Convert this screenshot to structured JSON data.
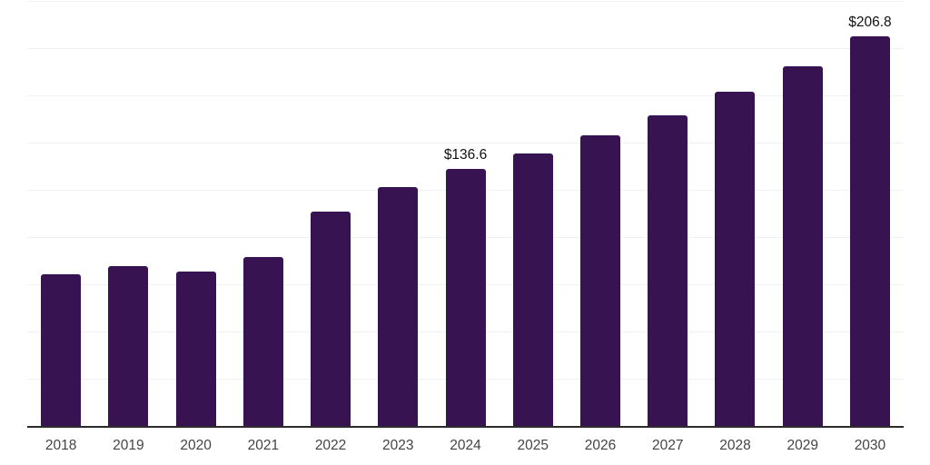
{
  "chart_data": {
    "type": "bar",
    "title": "",
    "xlabel": "",
    "ylabel": "",
    "categories": [
      "2018",
      "2019",
      "2020",
      "2021",
      "2022",
      "2023",
      "2024",
      "2025",
      "2026",
      "2027",
      "2028",
      "2029",
      "2030"
    ],
    "values": [
      80.8,
      84.9,
      82.4,
      90.1,
      114.0,
      126.8,
      136.6,
      144.9,
      154.5,
      164.9,
      177.2,
      191.0,
      206.8
    ],
    "data_labels": [
      {
        "category": "2024",
        "text": "$136.6"
      },
      {
        "category": "2030",
        "text": "$206.8"
      }
    ],
    "ylim": [
      0,
      225
    ],
    "gridline_step": 25,
    "grid": true,
    "legend": false,
    "colors": {
      "bar": "#371352",
      "axis_line": "#2b2b2b",
      "gridline": "#f1f1f2",
      "tick_label": "#444444",
      "value_label": "#111111",
      "background": "#ffffff"
    }
  }
}
